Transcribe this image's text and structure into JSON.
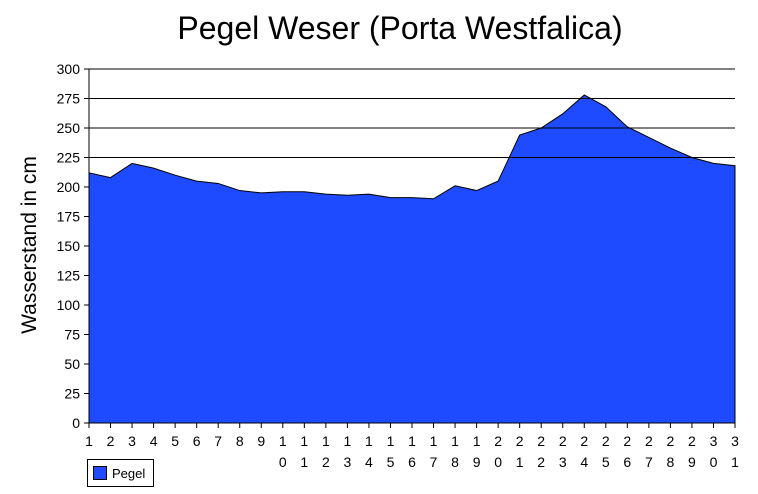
{
  "chart_data": {
    "type": "area",
    "title": "Pegel Weser (Porta Westfalica)",
    "xlabel": "",
    "ylabel": "Wasserstand in cm",
    "categories": [
      "1",
      "2",
      "3",
      "4",
      "5",
      "6",
      "7",
      "8",
      "9",
      "10",
      "11",
      "12",
      "13",
      "14",
      "15",
      "16",
      "17",
      "18",
      "19",
      "20",
      "21",
      "22",
      "23",
      "24",
      "25",
      "26",
      "27",
      "28",
      "29",
      "30",
      "31"
    ],
    "series": [
      {
        "name": "Pegel",
        "values": [
          212,
          208,
          220,
          216,
          210,
          205,
          203,
          197,
          195,
          196,
          196,
          194,
          193,
          194,
          191,
          191,
          190,
          201,
          197,
          205,
          244,
          250,
          262,
          278,
          268,
          251,
          242,
          233,
          225,
          220,
          218
        ]
      }
    ],
    "ylim": [
      0,
      300
    ],
    "yticks": [
      0,
      25,
      50,
      75,
      100,
      125,
      150,
      175,
      200,
      225,
      250,
      275,
      300
    ],
    "gridlines": [
      225,
      250,
      275,
      300
    ],
    "legend": "bottom-left",
    "colors": {
      "fill": "#1e4bff",
      "grid": "#000000"
    }
  }
}
